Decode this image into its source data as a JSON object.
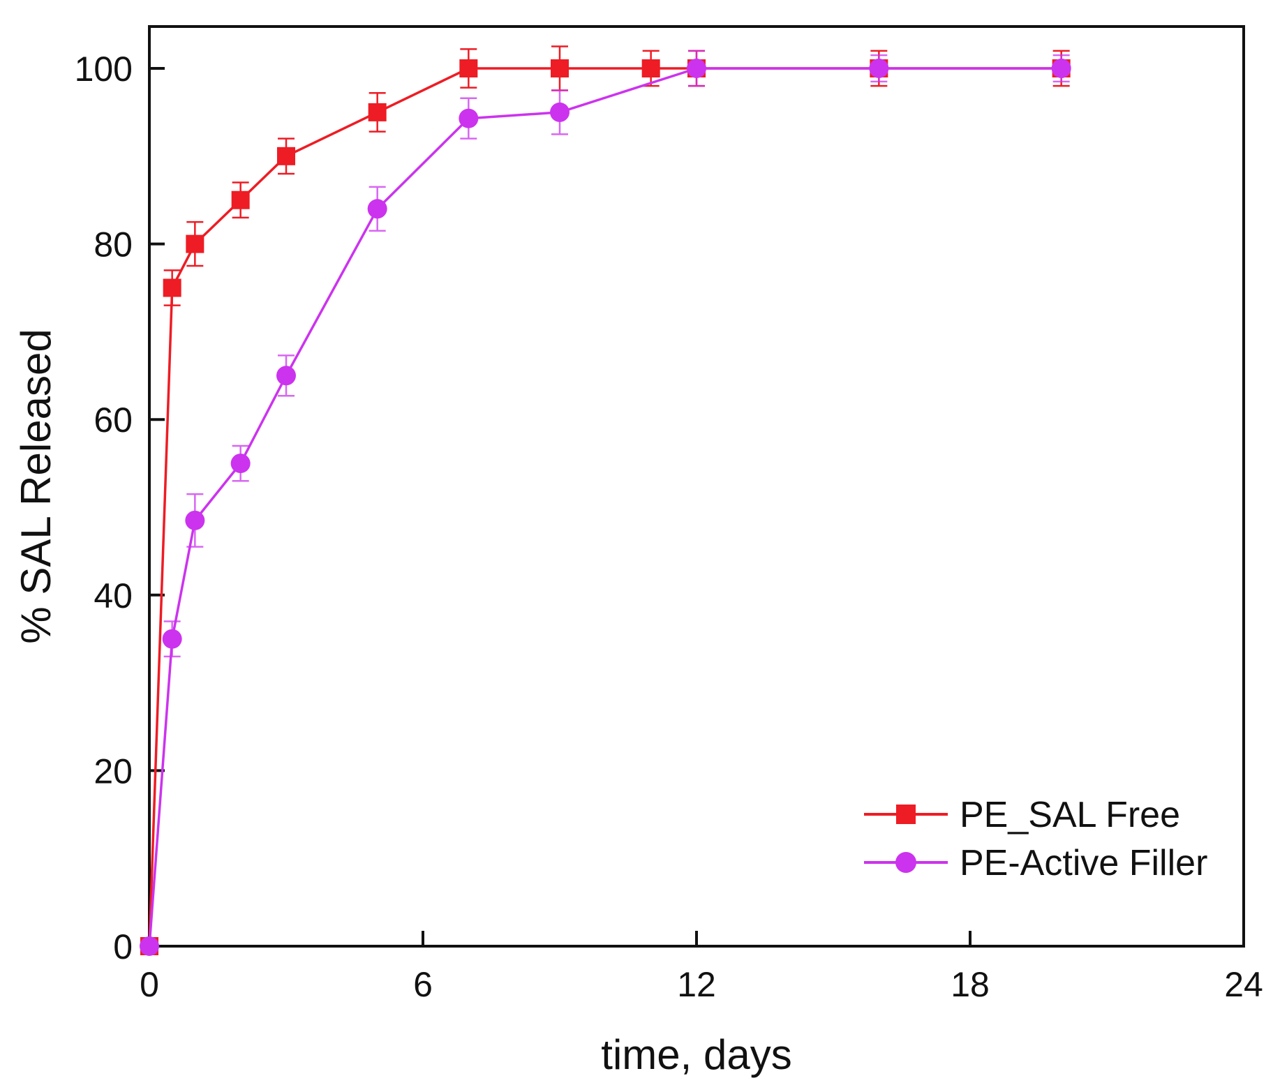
{
  "chart_data": {
    "type": "line",
    "title": "",
    "xlabel": "time, days",
    "ylabel": "% SAL Released",
    "xlim": [
      0,
      24
    ],
    "ylim": [
      0,
      105
    ],
    "xticks": [
      0,
      6,
      12,
      18,
      24
    ],
    "yticks": [
      0,
      20,
      40,
      60,
      80,
      100
    ],
    "grid": false,
    "legend_position": "bottom-right",
    "series": [
      {
        "name": "PE_SAL Free",
        "color": "#ee1c24",
        "marker": "square",
        "x": [
          0,
          0.5,
          1,
          2,
          3,
          5,
          7,
          9,
          11,
          12,
          16,
          20
        ],
        "y": [
          0,
          75,
          80,
          85,
          90,
          95,
          100,
          100,
          100,
          100,
          100,
          100
        ],
        "error": [
          0,
          2,
          2.5,
          2,
          2,
          2.2,
          2.2,
          2.5,
          2,
          2,
          2,
          2
        ]
      },
      {
        "name": "PE-Active Filler",
        "color": "#cc33ee",
        "marker": "circle",
        "x": [
          0,
          0.5,
          1,
          2,
          3,
          5,
          7,
          9,
          12,
          16,
          20
        ],
        "y": [
          0,
          35,
          48.5,
          55,
          65,
          84,
          94.3,
          95,
          100,
          100,
          100
        ],
        "error": [
          0,
          2,
          3,
          2,
          2.3,
          2.5,
          2.3,
          2.5,
          2,
          1.5,
          1.5
        ]
      }
    ]
  }
}
